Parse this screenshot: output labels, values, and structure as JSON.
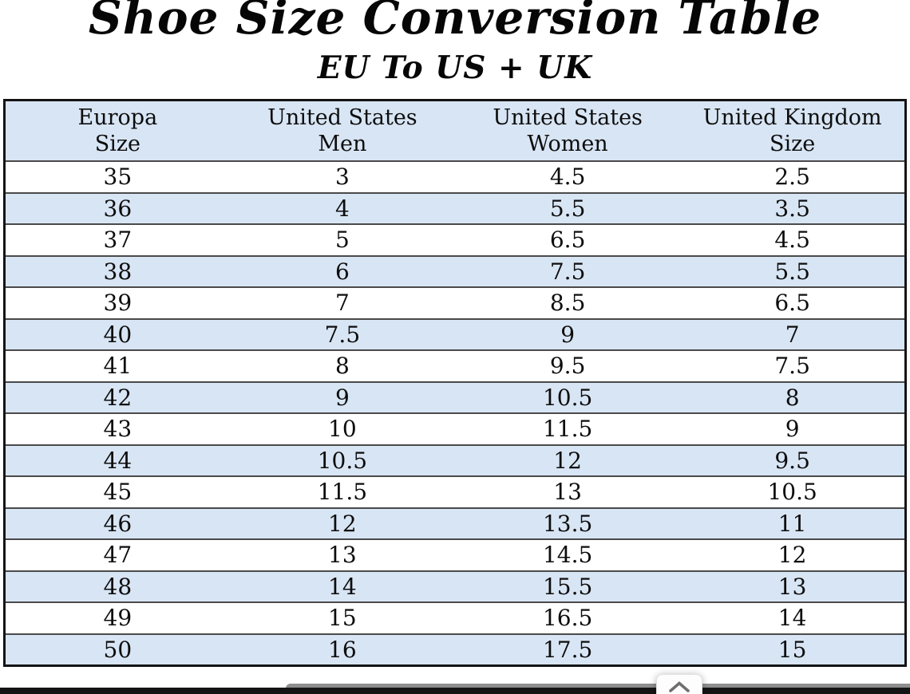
{
  "page": {
    "title": "Shoe Size Conversion Table",
    "subtitle": "EU To US + UK"
  },
  "table": {
    "headers": [
      {
        "line1": "Europa",
        "line2": "Size"
      },
      {
        "line1": "United States",
        "line2": "Men"
      },
      {
        "line1": "United States",
        "line2": "Women"
      },
      {
        "line1": "United Kingdom",
        "line2": "Size"
      }
    ],
    "rows": [
      [
        "35",
        "3",
        "4.5",
        "2.5"
      ],
      [
        "36",
        "4",
        "5.5",
        "3.5"
      ],
      [
        "37",
        "5",
        "6.5",
        "4.5"
      ],
      [
        "38",
        "6",
        "7.5",
        "5.5"
      ],
      [
        "39",
        "7",
        "8.5",
        "6.5"
      ],
      [
        "40",
        "7.5",
        "9",
        "7"
      ],
      [
        "41",
        "8",
        "9.5",
        "7.5"
      ],
      [
        "42",
        "9",
        "10.5",
        "8"
      ],
      [
        "43",
        "10",
        "11.5",
        "9"
      ],
      [
        "44",
        "10.5",
        "12",
        "9.5"
      ],
      [
        "45",
        "11.5",
        "13",
        "10.5"
      ],
      [
        "46",
        "12",
        "13.5",
        "11"
      ],
      [
        "47",
        "13",
        "14.5",
        "12"
      ],
      [
        "48",
        "14",
        "15.5",
        "13"
      ],
      [
        "49",
        "15",
        "16.5",
        "14"
      ],
      [
        "50",
        "16",
        "17.5",
        "15"
      ]
    ]
  },
  "scroll_button": {
    "icon": "chevron-up"
  },
  "colors": {
    "stripe_blue": "#d8e5f4",
    "row_border": "#4a4a4a",
    "outer_border": "#141414",
    "banner_black": "#141414",
    "chevron_gray": "#6e6e6e"
  },
  "chart_data": {
    "type": "table",
    "title": "Shoe Size Conversion Table",
    "subtitle": "EU To US + UK",
    "columns": [
      "Europa Size",
      "United States Men",
      "United States Women",
      "United Kingdom Size"
    ],
    "rows": [
      [
        35,
        3,
        4.5,
        2.5
      ],
      [
        36,
        4,
        5.5,
        3.5
      ],
      [
        37,
        5,
        6.5,
        4.5
      ],
      [
        38,
        6,
        7.5,
        5.5
      ],
      [
        39,
        7,
        8.5,
        6.5
      ],
      [
        40,
        7.5,
        9,
        7
      ],
      [
        41,
        8,
        9.5,
        7.5
      ],
      [
        42,
        9,
        10.5,
        8
      ],
      [
        43,
        10,
        11.5,
        9
      ],
      [
        44,
        10.5,
        12,
        9.5
      ],
      [
        45,
        11.5,
        13,
        10.5
      ],
      [
        46,
        12,
        13.5,
        11
      ],
      [
        47,
        13,
        14.5,
        12
      ],
      [
        48,
        14,
        15.5,
        13
      ],
      [
        49,
        15,
        16.5,
        14
      ],
      [
        50,
        16,
        17.5,
        15
      ]
    ],
    "layout": {
      "striped_rows": "even EU sizes highlighted light blue",
      "column_alignment": "center",
      "gridlines": "horizontal only, dark gray; black outer border"
    }
  }
}
